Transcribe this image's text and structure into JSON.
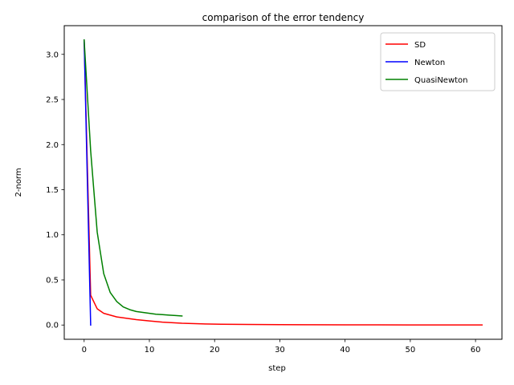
{
  "chart_data": {
    "type": "line",
    "title": "comparison of the error tendency",
    "xlabel": "step",
    "ylabel": "2-norm",
    "xlim": [
      -3.05,
      64.05
    ],
    "ylim": [
      -0.158,
      3.318
    ],
    "xticks": [
      0,
      10,
      20,
      30,
      40,
      50,
      60
    ],
    "xtick_labels": [
      "0",
      "10",
      "20",
      "30",
      "40",
      "50",
      "60"
    ],
    "yticks": [
      0.0,
      0.5,
      1.0,
      1.5,
      2.0,
      2.5,
      3.0
    ],
    "ytick_labels": [
      "0.0",
      "0.5",
      "1.0",
      "1.5",
      "2.0",
      "2.5",
      "3.0"
    ],
    "grid": false,
    "legend_position": "top-right",
    "series": [
      {
        "name": "SD",
        "color": "#ff0000",
        "x": [
          0,
          1,
          2,
          3,
          4,
          5,
          6,
          7,
          8,
          10,
          12,
          15,
          18,
          21,
          25,
          30,
          35,
          40,
          45,
          50,
          55,
          61
        ],
        "y": [
          3.16,
          0.33,
          0.18,
          0.13,
          0.11,
          0.09,
          0.08,
          0.07,
          0.06,
          0.045,
          0.032,
          0.02,
          0.013,
          0.009,
          0.006,
          0.004,
          0.003,
          0.002,
          0.0015,
          0.001,
          0.0008,
          0.0005
        ]
      },
      {
        "name": "Newton",
        "color": "#0000ff",
        "x": [
          0,
          1
        ],
        "y": [
          3.16,
          0.0
        ]
      },
      {
        "name": "QuasiNewton",
        "color": "#008000",
        "x": [
          0,
          1,
          2,
          3,
          4,
          5,
          6,
          7,
          8,
          9,
          10,
          11,
          12,
          13,
          14,
          15
        ],
        "y": [
          3.16,
          1.93,
          1.03,
          0.57,
          0.36,
          0.26,
          0.2,
          0.17,
          0.15,
          0.14,
          0.13,
          0.12,
          0.115,
          0.11,
          0.105,
          0.1
        ]
      }
    ]
  }
}
